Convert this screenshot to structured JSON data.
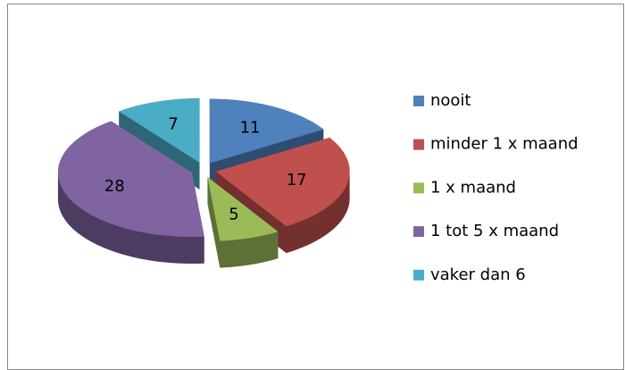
{
  "chart_data": {
    "type": "pie",
    "categories": [
      "nooit",
      "minder 1 x maand",
      "1 x maand",
      "1 tot 5 x maand",
      "vaker dan 6"
    ],
    "values": [
      11,
      17,
      5,
      28,
      7
    ],
    "colors": [
      "#4f81bd",
      "#c0504d",
      "#9bbb59",
      "#8064a2",
      "#4bacc6"
    ],
    "legend": "right"
  }
}
